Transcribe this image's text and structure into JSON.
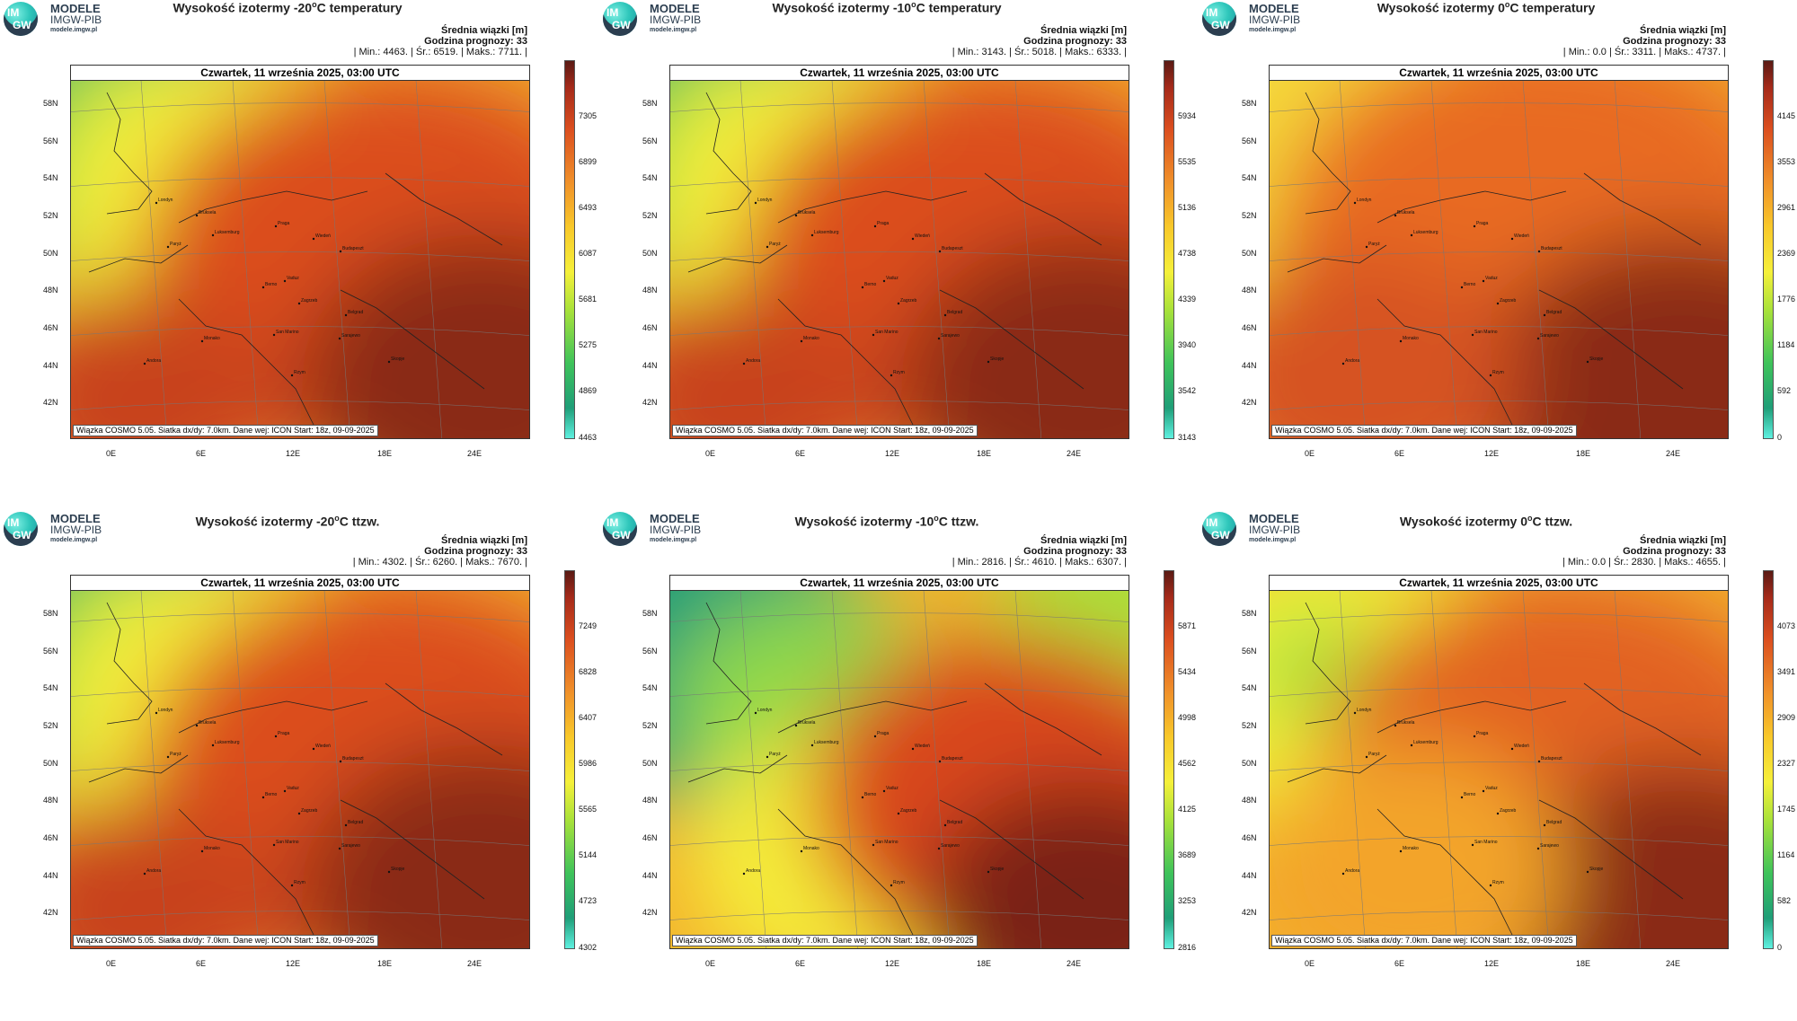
{
  "logo": {
    "letters_top": "IM",
    "letters_bottom": "GW",
    "line1": "MODELE",
    "line2": "IMGW-PIB",
    "line3": "modele.imgw.pl"
  },
  "panels": [
    {
      "title_pre": "Wysokość izotermy -20",
      "title_post": "C temperatury",
      "sup": "o",
      "stats_label": "Średnia wiązki [m]",
      "forecast_hour": "Godzina prognozy: 33",
      "stats_line": "| Min.:    4463. | Śr.:    6519. | Maks.:    7711. |",
      "date": "Czwartek, 11 września 2025, 03:00 UTC",
      "footer": "Wiązka COSMO 5.05. Siatka dx/dy: 7.0km. Dane wej: ICON Start: 18z, 09-09-2025",
      "colorbar": [
        "7305",
        "6899",
        "6493",
        "6087",
        "5681",
        "5275",
        "4869",
        "4463"
      ],
      "palette": "warm-south-cool-northwest"
    },
    {
      "title_pre": "Wysokość izotermy -10",
      "title_post": "C temperatury",
      "sup": "o",
      "stats_label": "Średnia wiązki [m]",
      "forecast_hour": "Godzina prognozy: 33",
      "stats_line": "| Min.:    3143. | Śr.:    5018. | Maks.:    6333. |",
      "date": "Czwartek, 11 września 2025, 03:00 UTC",
      "footer": "Wiązka COSMO 5.05. Siatka dx/dy: 7.0km. Dane wej: ICON Start: 18z, 09-09-2025",
      "colorbar": [
        "5934",
        "5535",
        "5136",
        "4738",
        "4339",
        "3940",
        "3542",
        "3143"
      ],
      "palette": "warm-south-cool-northwest"
    },
    {
      "title_pre": "Wysokość izotermy 0",
      "title_post": "C temperatury",
      "sup": "o",
      "stats_label": "Średnia wiązki [m]",
      "forecast_hour": "Godzina prognozy: 33",
      "stats_line": "| Min.:      0.0 | Śr.:    3311. | Maks.:    4737. |",
      "date": "Czwartek, 11 września 2025, 03:00 UTC",
      "footer": "Wiązka COSMO 5.05. Siatka dx/dy: 7.0km. Dane wej: ICON Start: 18z, 09-09-2025",
      "colorbar": [
        "4145",
        "3553",
        "2961",
        "2369",
        "1776",
        "1184",
        "592",
        "0"
      ],
      "palette": "mostly-orange"
    },
    {
      "title_pre": "Wysokość izotermy -20",
      "title_post": "C ttzw.",
      "sup": "o",
      "stats_label": "Średnia wiązki [m]",
      "forecast_hour": "Godzina prognozy: 33",
      "stats_line": "| Min.:    4302. | Śr.:    6260. | Maks.:    7670. |",
      "date": "Czwartek, 11 września 2025, 03:00 UTC",
      "footer": "Wiązka COSMO 5.05. Siatka dx/dy: 7.0km. Dane wej: ICON Start: 18z, 09-09-2025",
      "colorbar": [
        "7249",
        "6828",
        "6407",
        "5986",
        "5565",
        "5144",
        "4723",
        "4302"
      ],
      "palette": "warm-south-cool-northwest"
    },
    {
      "title_pre": "Wysokość izotermy -10",
      "title_post": "C ttzw.",
      "sup": "o",
      "stats_label": "Średnia wiązki [m]",
      "forecast_hour": "Godzina prognozy: 33",
      "stats_line": "| Min.:    2816. | Śr.:    4610. | Maks.:    6307. |",
      "date": "Czwartek, 11 września 2025, 03:00 UTC",
      "footer": "Wiązka COSMO 5.05. Siatka dx/dy: 7.0km. Dane wej: ICON Start: 18z, 09-09-2025",
      "colorbar": [
        "5871",
        "5434",
        "4998",
        "4562",
        "4125",
        "3689",
        "3253",
        "2816"
      ],
      "palette": "green-west-red-east"
    },
    {
      "title_pre": "Wysokość izotermy 0",
      "title_post": "C ttzw.",
      "sup": "o",
      "stats_label": "Średnia wiązki [m]",
      "forecast_hour": "Godzina prognozy: 33",
      "stats_line": "| Min.:      0.0 | Śr.:    2830. | Maks.:    4655. |",
      "date": "Czwartek, 11 września 2025, 03:00 UTC",
      "footer": "Wiązka COSMO 5.05. Siatka dx/dy: 7.0km. Dane wej: ICON Start: 18z, 09-09-2025",
      "colorbar": [
        "4073",
        "3491",
        "2909",
        "2327",
        "1745",
        "1164",
        "582",
        "0"
      ],
      "palette": "mostly-yellow-orange"
    }
  ],
  "lat_labels": [
    "58N",
    "56N",
    "54N",
    "52N",
    "50N",
    "48N",
    "46N",
    "44N",
    "42N"
  ],
  "lon_labels": [
    "0E",
    "6E",
    "12E",
    "18E",
    "24E"
  ],
  "cities": [
    "Londyn",
    "Bruksela",
    "Luksemburg",
    "Paryż",
    "Praga",
    "Wiedeń",
    "Budapeszt",
    "Berno",
    "Vaduz",
    "Zagrzeb",
    "Belgrad",
    "San Marino",
    "Sarajewo",
    "Monako",
    "Andora",
    "Rzym",
    "Skopje"
  ]
}
